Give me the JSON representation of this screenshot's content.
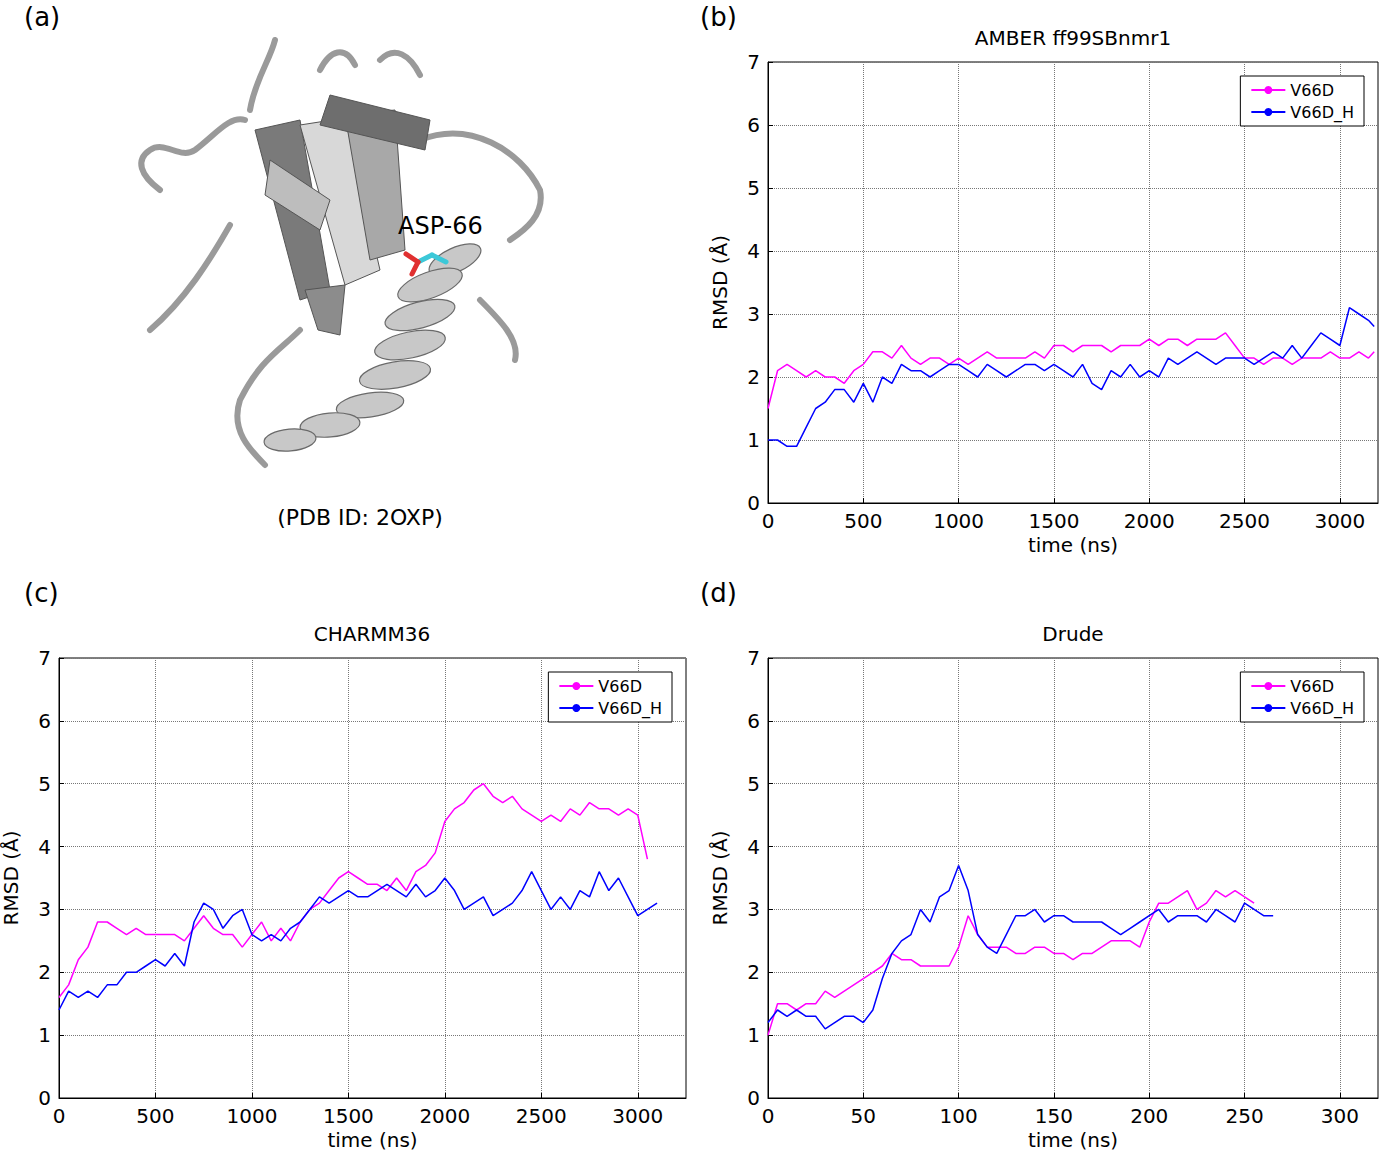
{
  "panel_a": {
    "letter": "(a)",
    "residue_label": "ASP-66",
    "caption": "(PDB ID: 2OXP)"
  },
  "chart_data": [
    {
      "letter": "(b)",
      "type": "line",
      "title": "AMBER ff99SBnmr1",
      "x_label": "time (ns)",
      "y_label": "RMSD (Å)",
      "x": [
        0,
        50,
        100,
        150,
        200,
        250,
        300,
        350,
        400,
        450,
        500,
        550,
        600,
        650,
        700,
        750,
        800,
        850,
        900,
        950,
        1000,
        1050,
        1100,
        1150,
        1200,
        1250,
        1300,
        1350,
        1400,
        1450,
        1500,
        1550,
        1600,
        1650,
        1700,
        1750,
        1800,
        1850,
        1900,
        1950,
        2000,
        2050,
        2100,
        2150,
        2200,
        2250,
        2300,
        2350,
        2400,
        2450,
        2500,
        2550,
        2600,
        2650,
        2700,
        2750,
        2800,
        2850,
        2900,
        2950,
        3000,
        3050,
        3100,
        3150,
        3180
      ],
      "series": [
        {
          "name": "V66D",
          "color": "#ff00ff",
          "values": [
            1.5,
            2.1,
            2.2,
            2.1,
            2.0,
            2.1,
            2.0,
            2.0,
            1.9,
            2.1,
            2.2,
            2.4,
            2.4,
            2.3,
            2.5,
            2.3,
            2.2,
            2.3,
            2.3,
            2.2,
            2.3,
            2.2,
            2.3,
            2.4,
            2.3,
            2.3,
            2.3,
            2.3,
            2.4,
            2.3,
            2.5,
            2.5,
            2.4,
            2.5,
            2.5,
            2.5,
            2.4,
            2.5,
            2.5,
            2.5,
            2.6,
            2.5,
            2.6,
            2.6,
            2.5,
            2.6,
            2.6,
            2.6,
            2.7,
            2.5,
            2.3,
            2.3,
            2.2,
            2.3,
            2.3,
            2.2,
            2.3,
            2.3,
            2.3,
            2.4,
            2.3,
            2.3,
            2.4,
            2.3,
            2.4
          ]
        },
        {
          "name": "V66D_H",
          "color": "#0000ff",
          "values": [
            1.0,
            1.0,
            0.9,
            0.9,
            1.2,
            1.5,
            1.6,
            1.8,
            1.8,
            1.6,
            1.9,
            1.6,
            2.0,
            1.9,
            2.2,
            2.1,
            2.1,
            2.0,
            2.1,
            2.2,
            2.2,
            2.1,
            2.0,
            2.2,
            2.1,
            2.0,
            2.1,
            2.2,
            2.2,
            2.1,
            2.2,
            2.1,
            2.0,
            2.2,
            1.9,
            1.8,
            2.1,
            2.0,
            2.2,
            2.0,
            2.1,
            2.0,
            2.3,
            2.2,
            2.3,
            2.4,
            2.3,
            2.2,
            2.3,
            2.3,
            2.3,
            2.2,
            2.3,
            2.4,
            2.3,
            2.5,
            2.3,
            2.5,
            2.7,
            2.6,
            2.5,
            3.1,
            3.0,
            2.9,
            2.8
          ]
        }
      ],
      "xlim": [
        0,
        3200
      ],
      "xticks": [
        0,
        500,
        1000,
        1500,
        2000,
        2500,
        3000
      ],
      "ylim": [
        0,
        7
      ],
      "yticks": [
        0,
        1,
        2,
        3,
        4,
        5,
        6,
        7
      ],
      "grid": true,
      "legend": "upper right"
    },
    {
      "letter": "(c)",
      "type": "line",
      "title": "CHARMM36",
      "x_label": "time (ns)",
      "y_label": "RMSD (Å)",
      "x": [
        0,
        50,
        100,
        150,
        200,
        250,
        300,
        350,
        400,
        450,
        500,
        550,
        600,
        650,
        700,
        750,
        800,
        850,
        900,
        950,
        1000,
        1050,
        1100,
        1150,
        1200,
        1250,
        1300,
        1350,
        1400,
        1450,
        1500,
        1550,
        1600,
        1650,
        1700,
        1750,
        1800,
        1850,
        1900,
        1950,
        2000,
        2050,
        2100,
        2150,
        2200,
        2250,
        2300,
        2350,
        2400,
        2450,
        2500,
        2550,
        2600,
        2650,
        2700,
        2750,
        2800,
        2850,
        2900,
        2950,
        3000,
        3050,
        3100
      ],
      "series": [
        {
          "name": "V66D",
          "color": "#ff00ff",
          "values": [
            1.6,
            1.8,
            2.2,
            2.4,
            2.8,
            2.8,
            2.7,
            2.6,
            2.7,
            2.6,
            2.6,
            2.6,
            2.6,
            2.5,
            2.7,
            2.9,
            2.7,
            2.6,
            2.6,
            2.4,
            2.6,
            2.8,
            2.5,
            2.7,
            2.5,
            2.8,
            3.0,
            3.1,
            3.3,
            3.5,
            3.6,
            3.5,
            3.4,
            3.4,
            3.3,
            3.5,
            3.3,
            3.6,
            3.7,
            3.9,
            4.4,
            4.6,
            4.7,
            4.9,
            5.0,
            4.8,
            4.7,
            4.8,
            4.6,
            4.5,
            4.4,
            4.5,
            4.4,
            4.6,
            4.5,
            4.7,
            4.6,
            4.6,
            4.5,
            4.6,
            4.5,
            3.8,
            null
          ]
        },
        {
          "name": "V66D_H",
          "color": "#0000ff",
          "values": [
            1.4,
            1.7,
            1.6,
            1.7,
            1.6,
            1.8,
            1.8,
            2.0,
            2.0,
            2.1,
            2.2,
            2.1,
            2.3,
            2.1,
            2.8,
            3.1,
            3.0,
            2.7,
            2.9,
            3.0,
            2.6,
            2.5,
            2.6,
            2.5,
            2.7,
            2.8,
            3.0,
            3.2,
            3.1,
            3.2,
            3.3,
            3.2,
            3.2,
            3.3,
            3.4,
            3.3,
            3.2,
            3.4,
            3.2,
            3.3,
            3.5,
            3.3,
            3.0,
            3.1,
            3.2,
            2.9,
            3.0,
            3.1,
            3.3,
            3.6,
            3.3,
            3.0,
            3.2,
            3.0,
            3.3,
            3.2,
            3.6,
            3.3,
            3.5,
            3.2,
            2.9,
            3.0,
            3.1
          ]
        }
      ],
      "xlim": [
        0,
        3250
      ],
      "xticks": [
        0,
        500,
        1000,
        1500,
        2000,
        2500,
        3000
      ],
      "ylim": [
        0,
        7
      ],
      "yticks": [
        0,
        1,
        2,
        3,
        4,
        5,
        6,
        7
      ],
      "grid": true,
      "legend": "upper right"
    },
    {
      "letter": "(d)",
      "type": "line",
      "title": "Drude",
      "x_label": "time (ns)",
      "y_label": "RMSD (Å)",
      "x": [
        0,
        5,
        10,
        15,
        20,
        25,
        30,
        35,
        40,
        45,
        50,
        55,
        60,
        65,
        70,
        75,
        80,
        85,
        90,
        95,
        100,
        105,
        110,
        115,
        120,
        125,
        130,
        135,
        140,
        145,
        150,
        155,
        160,
        165,
        170,
        175,
        180,
        185,
        190,
        195,
        200,
        205,
        210,
        215,
        220,
        225,
        230,
        235,
        240,
        245,
        250,
        255,
        260,
        265
      ],
      "series": [
        {
          "name": "V66D",
          "color": "#ff00ff",
          "values": [
            1.0,
            1.5,
            1.5,
            1.4,
            1.5,
            1.5,
            1.7,
            1.6,
            1.7,
            1.8,
            1.9,
            2.0,
            2.1,
            2.3,
            2.2,
            2.2,
            2.1,
            2.1,
            2.1,
            2.1,
            2.4,
            2.9,
            2.6,
            2.4,
            2.4,
            2.4,
            2.3,
            2.3,
            2.4,
            2.4,
            2.3,
            2.3,
            2.2,
            2.3,
            2.3,
            2.4,
            2.5,
            2.5,
            2.5,
            2.4,
            2.8,
            3.1,
            3.1,
            3.2,
            3.3,
            3.0,
            3.1,
            3.3,
            3.2,
            3.3,
            3.2,
            3.1,
            null,
            null
          ]
        },
        {
          "name": "V66D_H",
          "color": "#0000ff",
          "values": [
            1.2,
            1.4,
            1.3,
            1.4,
            1.3,
            1.3,
            1.1,
            1.2,
            1.3,
            1.3,
            1.2,
            1.4,
            1.9,
            2.3,
            2.5,
            2.6,
            3.0,
            2.8,
            3.2,
            3.3,
            3.7,
            3.3,
            2.6,
            2.4,
            2.3,
            2.6,
            2.9,
            2.9,
            3.0,
            2.8,
            2.9,
            2.9,
            2.8,
            2.8,
            2.8,
            2.8,
            2.7,
            2.6,
            2.7,
            2.8,
            2.9,
            3.0,
            2.8,
            2.9,
            2.9,
            2.9,
            2.8,
            3.0,
            2.9,
            2.8,
            3.1,
            3.0,
            2.9,
            2.9
          ]
        }
      ],
      "xlim": [
        0,
        320
      ],
      "xticks": [
        0,
        50,
        100,
        150,
        200,
        250,
        300
      ],
      "ylim": [
        0,
        7
      ],
      "yticks": [
        0,
        1,
        2,
        3,
        4,
        5,
        6,
        7
      ],
      "grid": true,
      "legend": "upper right"
    }
  ]
}
